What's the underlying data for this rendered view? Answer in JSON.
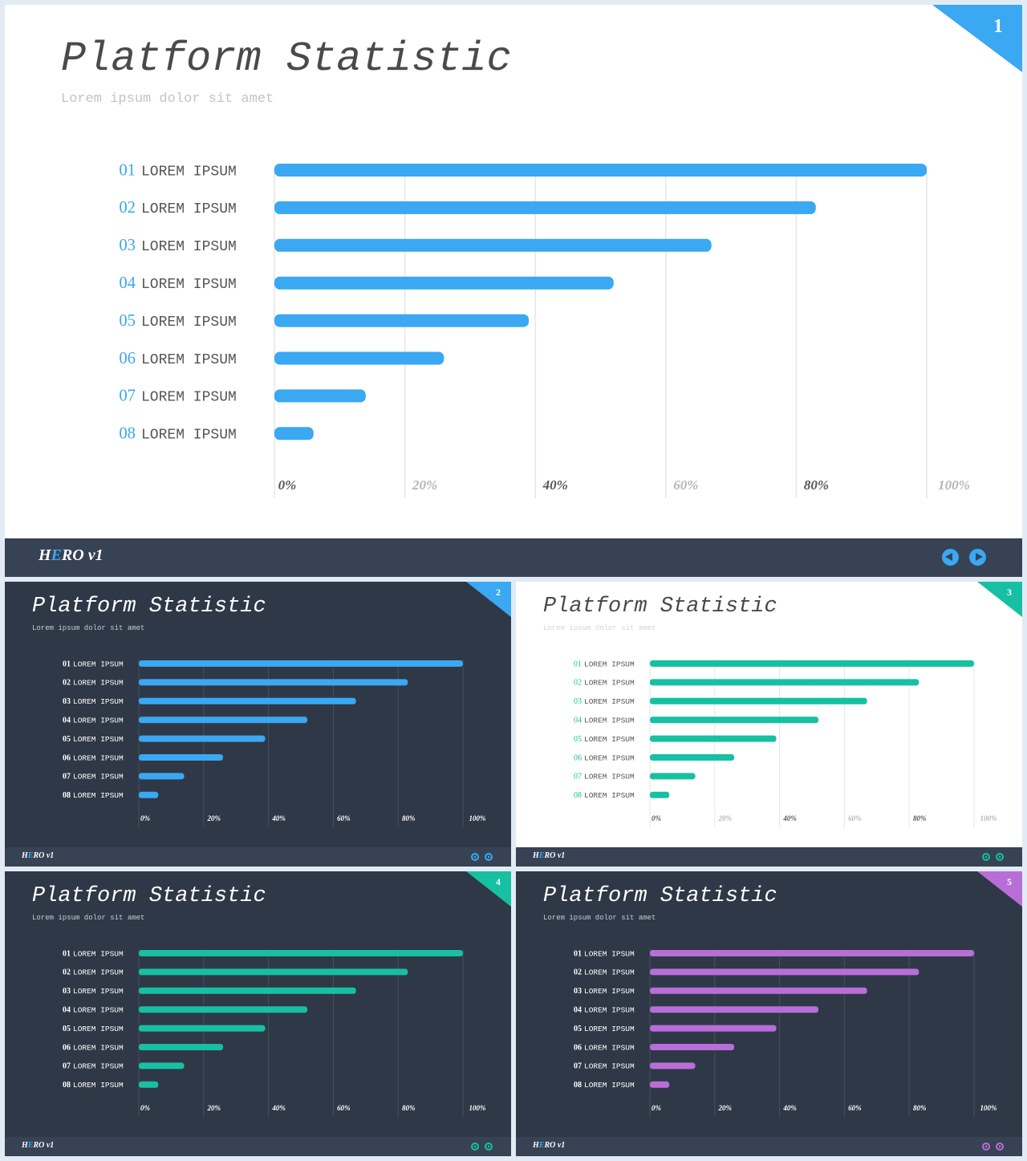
{
  "slides": [
    {
      "id": "s1",
      "title_part1": "Platform",
      "title_part2": "Statistic",
      "subtitle": "Lorem ipsum dolor sit amet",
      "page_number": "1",
      "brand_prefix": "H",
      "brand_highlight": "E",
      "brand_suffix": "RO v1",
      "accent": "#3aa8f2",
      "theme": "light"
    },
    {
      "id": "s2",
      "title_part1": "Platform",
      "title_part2": "Statistic",
      "subtitle": "Lorem ipsum dolor sit amet",
      "page_number": "2",
      "brand_prefix": "H",
      "brand_highlight": "E",
      "brand_suffix": "RO v1",
      "accent": "#3aa8f2",
      "theme": "dark"
    },
    {
      "id": "s3",
      "title_part1": "Platform",
      "title_part2": "Statistic",
      "subtitle": "Lorem ipsum dolor sit amet",
      "page_number": "3",
      "brand_prefix": "H",
      "brand_highlight": "E",
      "brand_suffix": "RO v1",
      "accent": "#17c0a3",
      "theme": "light"
    },
    {
      "id": "s4",
      "title_part1": "Platform",
      "title_part2": "Statistic",
      "subtitle": "Lorem ipsum dolor sit amet",
      "page_number": "4",
      "brand_prefix": "H",
      "brand_highlight": "E",
      "brand_suffix": "RO v1",
      "accent": "#17c0a3",
      "theme": "dark"
    },
    {
      "id": "s5",
      "title_part1": "Platform",
      "title_part2": "Statistic",
      "subtitle": "Lorem ipsum dolor sit amet",
      "page_number": "5",
      "brand_prefix": "H",
      "brand_highlight": "E",
      "brand_suffix": "RO v1",
      "accent": "#b86ed8",
      "theme": "dark"
    }
  ],
  "chart_data": [
    {
      "type": "bar",
      "orientation": "horizontal",
      "category_numbers": [
        "01",
        "02",
        "03",
        "04",
        "05",
        "06",
        "07",
        "08"
      ],
      "category_labels": [
        "LOREM IPSUM",
        "LOREM IPSUM",
        "LOREM IPSUM",
        "LOREM IPSUM",
        "LOREM IPSUM",
        "LOREM IPSUM",
        "LOREM IPSUM",
        "LOREM IPSUM"
      ],
      "values": [
        100,
        83,
        67,
        52,
        39,
        26,
        14,
        6
      ],
      "x_ticks": [
        "0%",
        "20%",
        "40%",
        "60%",
        "80%",
        "100%"
      ],
      "xlim": [
        0,
        100
      ],
      "grid": true
    },
    {
      "type": "bar",
      "orientation": "horizontal",
      "category_numbers": [
        "01",
        "02",
        "03",
        "04",
        "05",
        "06",
        "07",
        "08"
      ],
      "category_labels": [
        "LOREM IPSUM",
        "LOREM IPSUM",
        "LOREM IPSUM",
        "LOREM IPSUM",
        "LOREM IPSUM",
        "LOREM IPSUM",
        "LOREM IPSUM",
        "LOREM IPSUM"
      ],
      "values": [
        100,
        83,
        67,
        52,
        39,
        26,
        14,
        6
      ],
      "x_ticks": [
        "0%",
        "20%",
        "40%",
        "60%",
        "80%",
        "100%"
      ],
      "xlim": [
        0,
        100
      ],
      "grid": true
    },
    {
      "type": "bar",
      "orientation": "horizontal",
      "category_numbers": [
        "01",
        "02",
        "03",
        "04",
        "05",
        "06",
        "07",
        "08"
      ],
      "category_labels": [
        "LOREM IPSUM",
        "LOREM IPSUM",
        "LOREM IPSUM",
        "LOREM IPSUM",
        "LOREM IPSUM",
        "LOREM IPSUM",
        "LOREM IPSUM",
        "LOREM IPSUM"
      ],
      "values": [
        100,
        83,
        67,
        52,
        39,
        26,
        14,
        6
      ],
      "x_ticks": [
        "0%",
        "20%",
        "40%",
        "60%",
        "80%",
        "100%"
      ],
      "xlim": [
        0,
        100
      ],
      "grid": true
    },
    {
      "type": "bar",
      "orientation": "horizontal",
      "category_numbers": [
        "01",
        "02",
        "03",
        "04",
        "05",
        "06",
        "07",
        "08"
      ],
      "category_labels": [
        "LOREM IPSUM",
        "LOREM IPSUM",
        "LOREM IPSUM",
        "LOREM IPSUM",
        "LOREM IPSUM",
        "LOREM IPSUM",
        "LOREM IPSUM",
        "LOREM IPSUM"
      ],
      "values": [
        100,
        83,
        67,
        52,
        39,
        26,
        14,
        6
      ],
      "x_ticks": [
        "0%",
        "20%",
        "40%",
        "60%",
        "80%",
        "100%"
      ],
      "xlim": [
        0,
        100
      ],
      "grid": true
    },
    {
      "type": "bar",
      "orientation": "horizontal",
      "category_numbers": [
        "01",
        "02",
        "03",
        "04",
        "05",
        "06",
        "07",
        "08"
      ],
      "category_labels": [
        "LOREM IPSUM",
        "LOREM IPSUM",
        "LOREM IPSUM",
        "LOREM IPSUM",
        "LOREM IPSUM",
        "LOREM IPSUM",
        "LOREM IPSUM",
        "LOREM IPSUM"
      ],
      "values": [
        100,
        83,
        67,
        52,
        39,
        26,
        14,
        6
      ],
      "x_ticks": [
        "0%",
        "20%",
        "40%",
        "60%",
        "80%",
        "100%"
      ],
      "xlim": [
        0,
        100
      ],
      "grid": true
    }
  ]
}
